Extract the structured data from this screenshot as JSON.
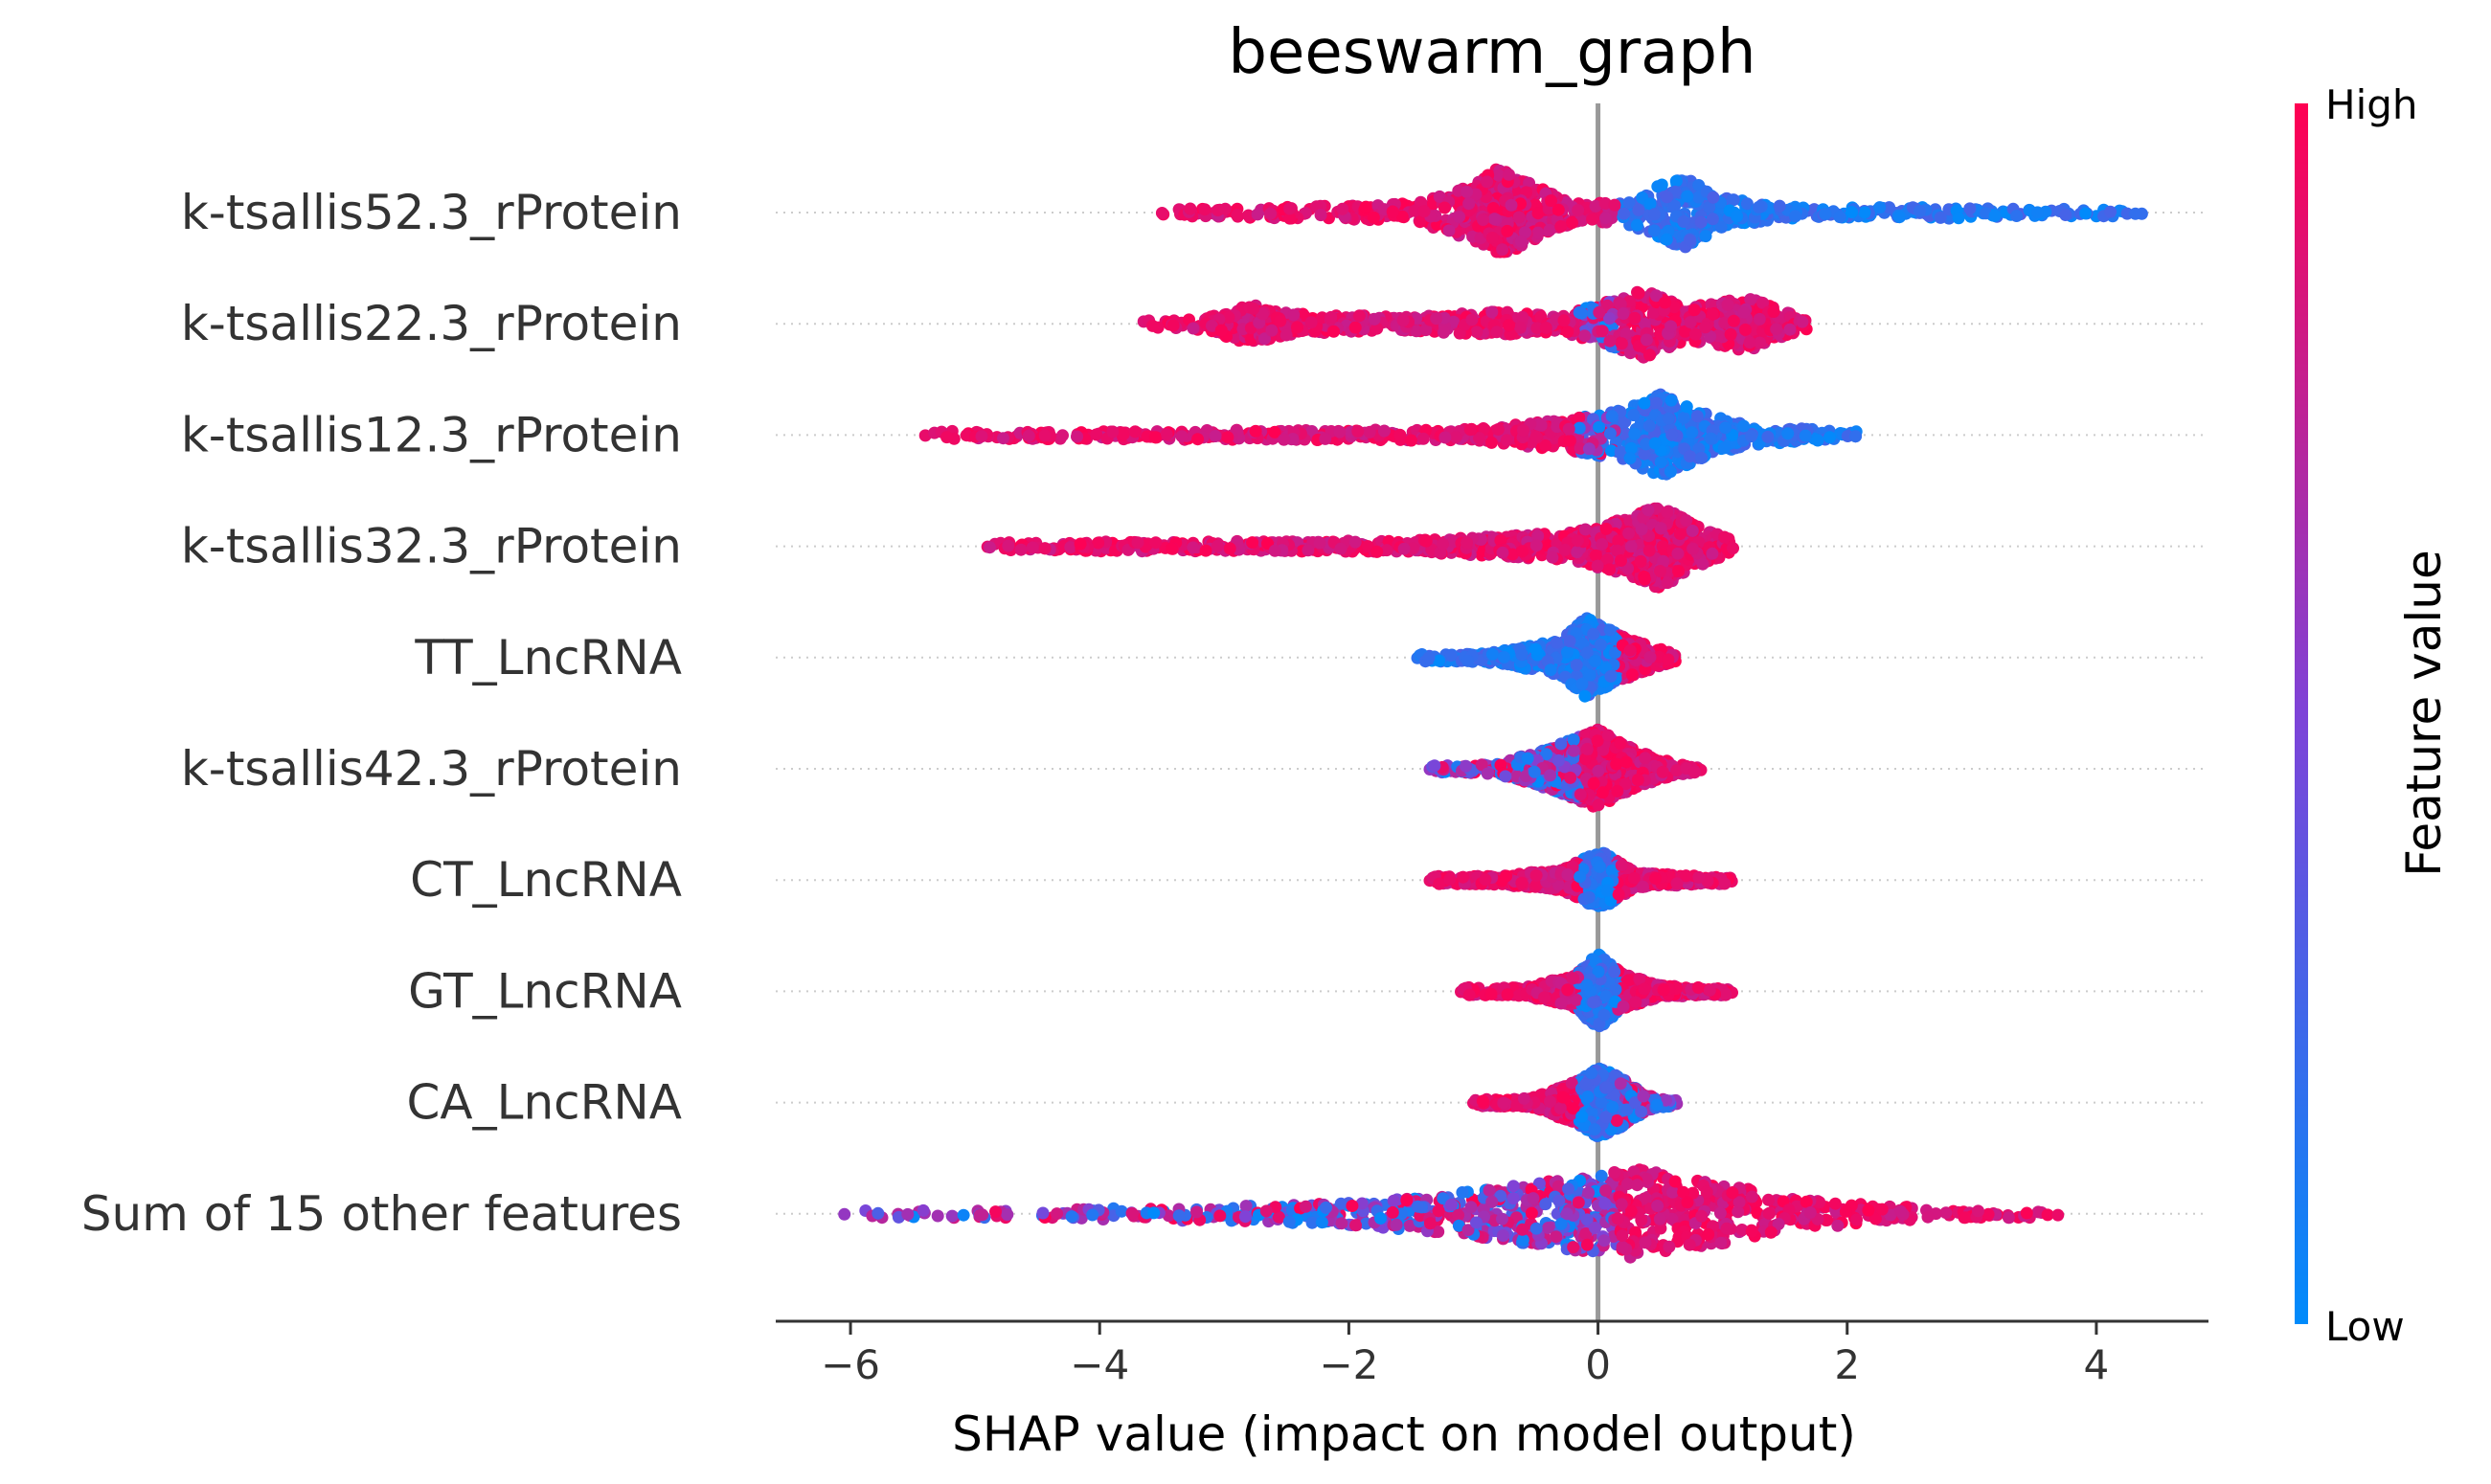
{
  "chart_data": {
    "type": "scatter",
    "subtype": "beeswarm",
    "title": "beeswarm_graph",
    "xlabel": "SHAP value (impact on model output)",
    "xlim": [
      -6.6,
      4.9
    ],
    "xticks": [
      {
        "value": -6,
        "label": "−6"
      },
      {
        "value": -4,
        "label": "−4"
      },
      {
        "value": -2,
        "label": "−2"
      },
      {
        "value": 0,
        "label": "0"
      },
      {
        "value": 2,
        "label": "2"
      },
      {
        "value": 4,
        "label": "4"
      }
    ],
    "grid": false,
    "zero_line": true,
    "features": [
      {
        "name": "k-tsallis52.3_rProtein",
        "min": -3.5,
        "max": 4.4,
        "density": [
          [
            -3.5,
            0.05
          ],
          [
            -2.5,
            0.12
          ],
          [
            -1.5,
            0.18
          ],
          [
            -1.0,
            0.55
          ],
          [
            -0.8,
            0.9
          ],
          [
            -0.5,
            0.55
          ],
          [
            -0.2,
            0.2
          ],
          [
            0.2,
            0.2
          ],
          [
            0.5,
            0.55
          ],
          [
            0.7,
            0.7
          ],
          [
            1.0,
            0.3
          ],
          [
            1.5,
            0.12
          ],
          [
            2.0,
            0.1
          ],
          [
            2.8,
            0.12
          ],
          [
            3.5,
            0.06
          ],
          [
            4.4,
            0.03
          ]
        ],
        "color": {
          "left": "high",
          "center": "high",
          "right": "low"
        }
      },
      {
        "name": "k-tsallis22.3_rProtein",
        "min": -3.7,
        "max": 1.75,
        "density": [
          [
            -3.7,
            0.03
          ],
          [
            -3.2,
            0.12
          ],
          [
            -2.8,
            0.4
          ],
          [
            -2.4,
            0.2
          ],
          [
            -1.5,
            0.14
          ],
          [
            -0.8,
            0.25
          ],
          [
            -0.3,
            0.15
          ],
          [
            0.2,
            0.55
          ],
          [
            0.4,
            0.7
          ],
          [
            0.7,
            0.35
          ],
          [
            1.0,
            0.45
          ],
          [
            1.2,
            0.55
          ],
          [
            1.5,
            0.25
          ],
          [
            1.75,
            0.05
          ]
        ],
        "color": {
          "left": "high",
          "center": "mixed",
          "right": "high"
        }
      },
      {
        "name": "k-tsallis12.3_rProtein",
        "min": -5.4,
        "max": 2.15,
        "density": [
          [
            -5.4,
            0.03
          ],
          [
            -4.5,
            0.08
          ],
          [
            -3.0,
            0.1
          ],
          [
            -2.0,
            0.1
          ],
          [
            -1.0,
            0.12
          ],
          [
            -0.3,
            0.3
          ],
          [
            0.2,
            0.5
          ],
          [
            0.5,
            0.85
          ],
          [
            0.8,
            0.5
          ],
          [
            1.2,
            0.2
          ],
          [
            1.6,
            0.14
          ],
          [
            2.15,
            0.03
          ]
        ],
        "color": {
          "left": "high",
          "center": "mixed",
          "right": "low"
        }
      },
      {
        "name": "k-tsallis32.3_rProtein",
        "min": -4.9,
        "max": 1.15,
        "density": [
          [
            -4.9,
            0.03
          ],
          [
            -4.0,
            0.1
          ],
          [
            -2.5,
            0.1
          ],
          [
            -1.5,
            0.12
          ],
          [
            -0.8,
            0.2
          ],
          [
            -0.2,
            0.3
          ],
          [
            0.2,
            0.55
          ],
          [
            0.5,
            0.85
          ],
          [
            0.8,
            0.4
          ],
          [
            1.15,
            0.05
          ]
        ],
        "color": {
          "left": "high",
          "center": "high",
          "right": "high"
        }
      },
      {
        "name": "TT_LncRNA",
        "min": -1.45,
        "max": 0.65,
        "density": [
          [
            -1.45,
            0.03
          ],
          [
            -0.8,
            0.12
          ],
          [
            -0.3,
            0.35
          ],
          [
            -0.1,
            0.8
          ],
          [
            0.1,
            0.55
          ],
          [
            0.35,
            0.3
          ],
          [
            0.65,
            0.05
          ]
        ],
        "color": {
          "left": "low",
          "center": "low",
          "right": "high"
        }
      },
      {
        "name": "k-tsallis42.3_rProtein",
        "min": -1.35,
        "max": 0.85,
        "density": [
          [
            -1.35,
            0.03
          ],
          [
            -0.8,
            0.12
          ],
          [
            -0.4,
            0.4
          ],
          [
            0.0,
            0.8
          ],
          [
            0.2,
            0.5
          ],
          [
            0.5,
            0.2
          ],
          [
            0.85,
            0.03
          ]
        ],
        "color": {
          "left": "mixed",
          "center": "high",
          "right": "high"
        }
      },
      {
        "name": "CT_LncRNA",
        "min": -1.35,
        "max": 1.1,
        "density": [
          [
            -1.35,
            0.05
          ],
          [
            -0.8,
            0.1
          ],
          [
            -0.3,
            0.2
          ],
          [
            -0.05,
            0.5
          ],
          [
            0.05,
            0.55
          ],
          [
            0.3,
            0.15
          ],
          [
            0.7,
            0.1
          ],
          [
            1.1,
            0.03
          ]
        ],
        "color": {
          "left": "high",
          "center": "low",
          "right": "high"
        }
      },
      {
        "name": "GT_LncRNA",
        "min": -1.1,
        "max": 1.1,
        "density": [
          [
            -1.1,
            0.03
          ],
          [
            -0.6,
            0.1
          ],
          [
            -0.2,
            0.3
          ],
          [
            0.0,
            0.75
          ],
          [
            0.2,
            0.35
          ],
          [
            0.5,
            0.12
          ],
          [
            1.1,
            0.04
          ]
        ],
        "color": {
          "left": "high",
          "center": "low",
          "right": "high"
        }
      },
      {
        "name": "CA_LncRNA",
        "min": -1.0,
        "max": 0.65,
        "density": [
          [
            -1.0,
            0.03
          ],
          [
            -0.5,
            0.12
          ],
          [
            -0.15,
            0.45
          ],
          [
            0.0,
            0.7
          ],
          [
            0.15,
            0.55
          ],
          [
            0.4,
            0.15
          ],
          [
            0.65,
            0.04
          ]
        ],
        "color": {
          "left": "high",
          "center": "low",
          "right": "mixed"
        }
      },
      {
        "name": "Sum of 15 other features",
        "min": -6.05,
        "max": 3.8,
        "density": [
          [
            -6.05,
            0.04
          ],
          [
            -5.0,
            0.05
          ],
          [
            -4.0,
            0.12
          ],
          [
            -3.0,
            0.15
          ],
          [
            -2.0,
            0.22
          ],
          [
            -1.0,
            0.45
          ],
          [
            -0.3,
            0.7
          ],
          [
            0.3,
            0.9
          ],
          [
            1.0,
            0.6
          ],
          [
            1.6,
            0.3
          ],
          [
            2.5,
            0.14
          ],
          [
            3.8,
            0.03
          ]
        ],
        "color": {
          "left": "mixed",
          "center": "mixed",
          "right": "high"
        }
      }
    ],
    "colorbar": {
      "label": "Feature value",
      "high_label": "High",
      "low_label": "Low",
      "high_color": "#ff0052",
      "low_color": "#008bfb"
    }
  }
}
